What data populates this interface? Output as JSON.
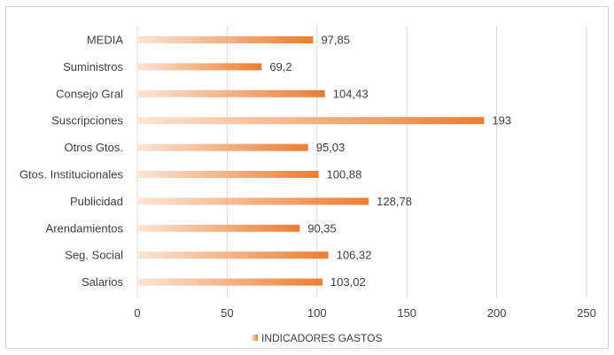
{
  "chart_data": {
    "type": "bar",
    "orientation": "horizontal",
    "categories": [
      "MEDIA",
      "Suministros",
      "Consejo Gral",
      "Suscripciones",
      "Otros Gtos.",
      "Gtos. Institucionales",
      "Publicidad",
      "Arendamientos",
      "Seg. Social",
      "Salarios"
    ],
    "series": [
      {
        "name": "INDICADORES GASTOS",
        "values": [
          97.85,
          69.2,
          104.43,
          193,
          95.03,
          100.88,
          128.78,
          90.35,
          106.32,
          103.02
        ],
        "labels": [
          "97,85",
          "69,2",
          "104,43",
          "193",
          "95,03",
          "100,88",
          "128,78",
          "90,35",
          "106,32",
          "103,02"
        ]
      }
    ],
    "xlim": [
      0,
      250
    ],
    "xticks": [
      0,
      50,
      100,
      150,
      200,
      250
    ],
    "xtick_labels": [
      "0",
      "50",
      "100",
      "150",
      "200",
      "250"
    ],
    "grid": "vertical",
    "legend": "bottom",
    "colors": {
      "bar": "#ed7d31",
      "bar_fade": "#fbe5d6",
      "grid": "#d9d9d9",
      "text": "#404040",
      "frame": "#d9d9d9"
    }
  }
}
